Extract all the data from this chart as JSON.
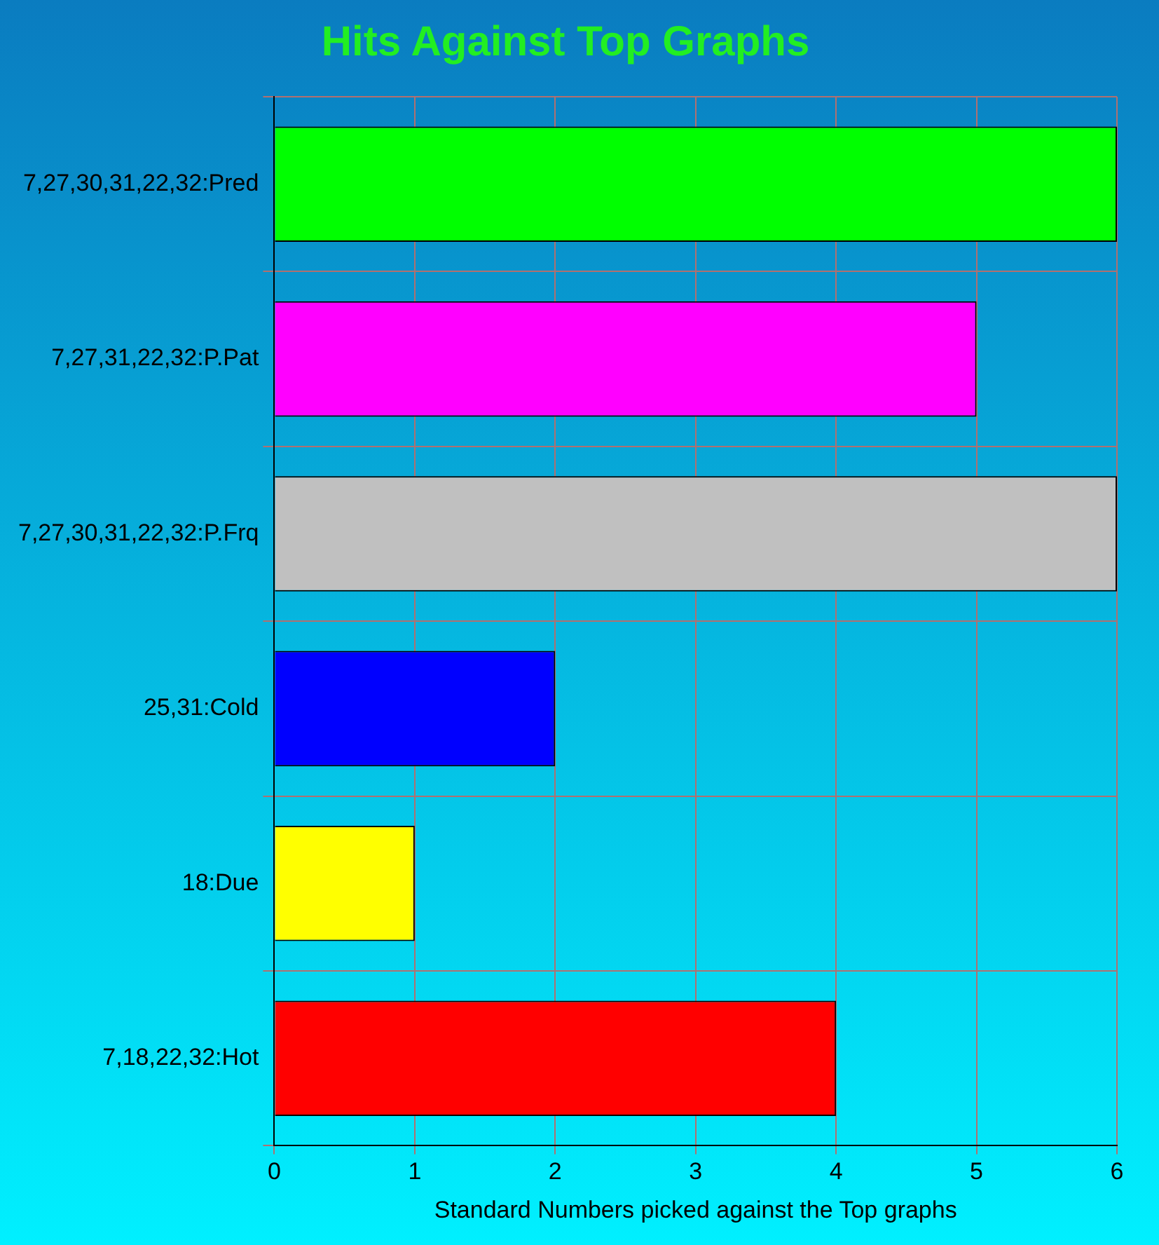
{
  "chart_data": {
    "type": "bar",
    "orientation": "horizontal",
    "title": "Hits Against Top Graphs",
    "xlabel": "Standard Numbers picked against the Top graphs",
    "categories": [
      "7,27,30,31,22,32:Pred",
      "7,27,31,22,32:P.Pat",
      "7,27,30,31,22,32:P.Frq",
      "25,31:Cold",
      "18:Due",
      "7,18,22,32:Hot"
    ],
    "values": [
      6,
      5,
      6,
      2,
      1,
      4
    ],
    "colors": [
      "#00ff00",
      "#ff00ff",
      "#c0c0c0",
      "#0000ff",
      "#ffff00",
      "#ff0000"
    ],
    "xlim": [
      0,
      6
    ],
    "xticks": [
      0,
      1,
      2,
      3,
      4,
      5,
      6
    ],
    "grid": true,
    "legend": false
  }
}
